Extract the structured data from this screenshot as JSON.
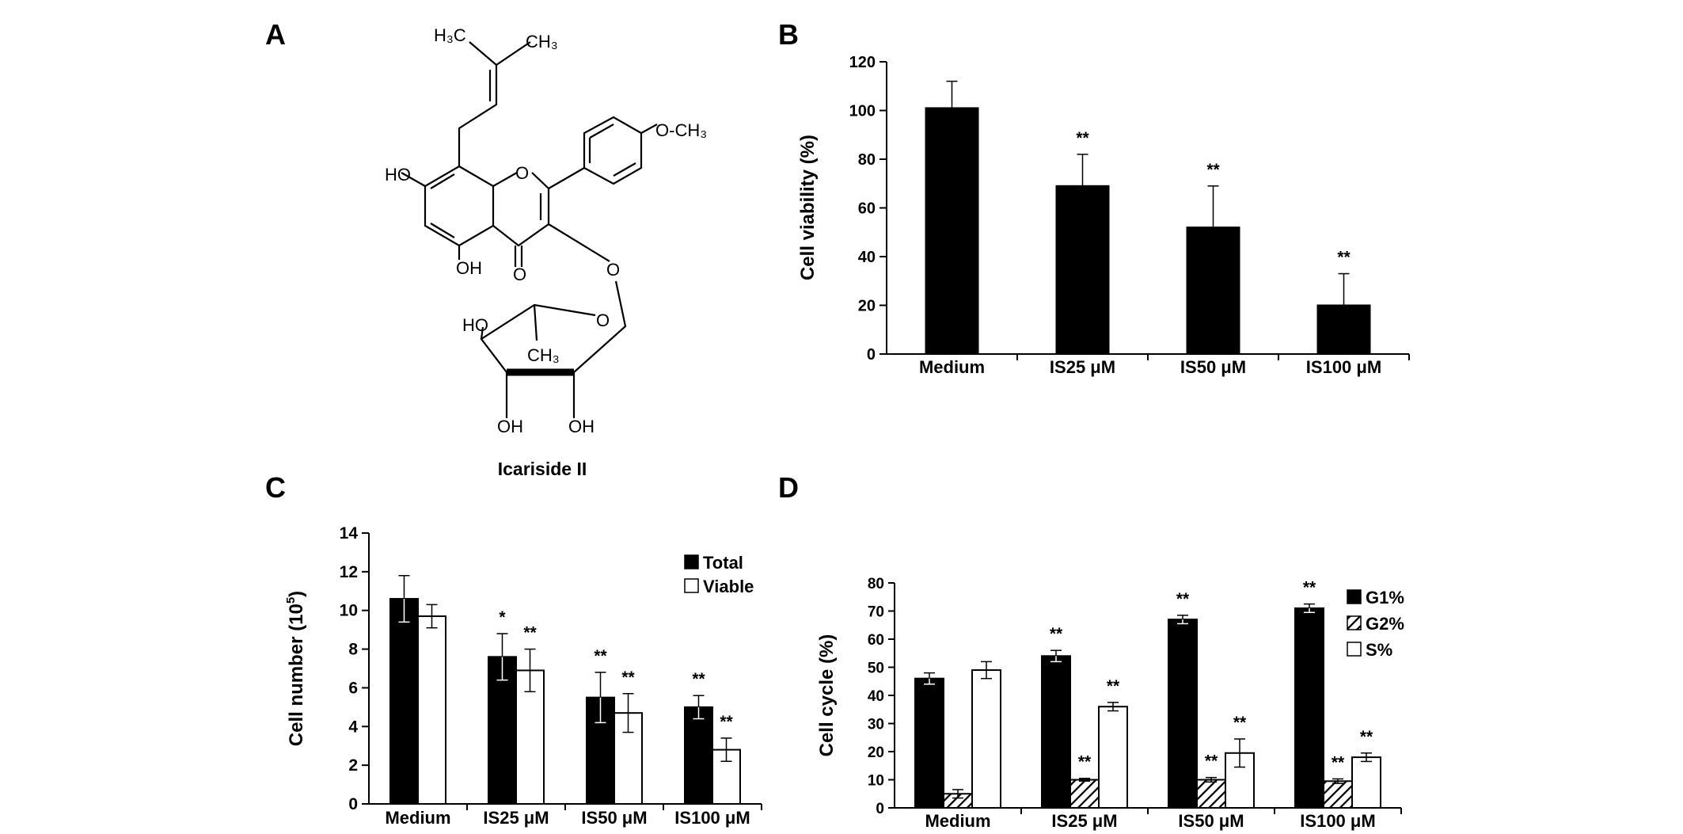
{
  "panels": {
    "a": "A",
    "b": "B",
    "c": "C",
    "d": "D"
  },
  "structure": {
    "name": "Icariside II",
    "labels": {
      "ch3_left": "H₃C",
      "ch3_right": "CH₃",
      "och3": "O-CH₃",
      "ho_7": "HO",
      "oh_5": "OH",
      "ketone_o": "O",
      "ring_o": "O",
      "glyco_o": "O",
      "sugar_ring_o": "O",
      "sugar_ho": "HO",
      "sugar_ch3": "CH₃",
      "sugar_oh1": "OH",
      "sugar_oh2": "OH"
    }
  },
  "chart_data": [
    {
      "panel": "B",
      "type": "bar",
      "title": "",
      "xlabel": "",
      "ylabel": "Cell viability (%)",
      "ylim": [
        0,
        120
      ],
      "yticks": [
        0,
        20,
        40,
        60,
        80,
        100,
        120
      ],
      "categories": [
        "Medium",
        "IS25 μM",
        "IS50 μM",
        "IS100 μM"
      ],
      "series": [
        {
          "values": [
            101,
            69,
            52,
            20
          ],
          "errors": [
            11,
            13,
            17,
            13
          ],
          "significance": [
            "",
            "**",
            "**",
            "**"
          ],
          "color": "#000000"
        }
      ],
      "legend": "none",
      "grid": false
    },
    {
      "panel": "C",
      "type": "bar",
      "title": "",
      "xlabel": "",
      "ylabel": "Cell number (10^5)",
      "ylabel_main": "Cell number (10",
      "ylabel_sup": "5",
      "ylabel_end": ")",
      "ylim": [
        0,
        14
      ],
      "yticks": [
        0,
        2,
        4,
        6,
        8,
        10,
        12,
        14
      ],
      "categories": [
        "Medium",
        "IS25 μM",
        "IS50 μM",
        "IS100 μM"
      ],
      "series": [
        {
          "name": "Total",
          "values": [
            10.6,
            7.6,
            5.5,
            5.0
          ],
          "errors": [
            1.2,
            1.2,
            1.3,
            0.6
          ],
          "significance": [
            "",
            "*",
            "**",
            "**"
          ],
          "color": "#000000",
          "fill": "solid"
        },
        {
          "name": "Viable",
          "values": [
            9.7,
            6.9,
            4.7,
            2.8
          ],
          "errors": [
            0.6,
            1.1,
            1.0,
            0.6
          ],
          "significance": [
            "",
            "**",
            "**",
            "**"
          ],
          "color": "#ffffff",
          "fill": "open"
        }
      ],
      "legend": "top-right",
      "grid": false
    },
    {
      "panel": "D",
      "type": "bar",
      "title": "",
      "xlabel": "",
      "ylabel": "Cell cycle (%)",
      "ylim": [
        0,
        80
      ],
      "yticks": [
        0,
        10,
        20,
        30,
        40,
        50,
        60,
        70,
        80
      ],
      "categories": [
        "Medium",
        "IS25 μM",
        "IS50 μM",
        "IS100 μM"
      ],
      "series": [
        {
          "name": "G1%",
          "values": [
            46,
            54,
            67,
            71
          ],
          "errors": [
            2,
            2,
            1.5,
            1.5
          ],
          "significance": [
            "",
            "**",
            "**",
            "**"
          ],
          "color": "#000000",
          "fill": "solid"
        },
        {
          "name": "G2%",
          "values": [
            5,
            10,
            10,
            9.5
          ],
          "errors": [
            1.5,
            0.5,
            0.8,
            0.8
          ],
          "significance": [
            "",
            "**",
            "**",
            "**"
          ],
          "color": "#000000",
          "fill": "hatched"
        },
        {
          "name": "S%",
          "values": [
            49,
            36,
            19.5,
            18
          ],
          "errors": [
            3,
            1.5,
            5,
            1.5
          ],
          "significance": [
            "",
            "**",
            "**",
            "**"
          ],
          "color": "#ffffff",
          "fill": "open"
        }
      ],
      "legend": "top-right",
      "grid": false
    }
  ]
}
